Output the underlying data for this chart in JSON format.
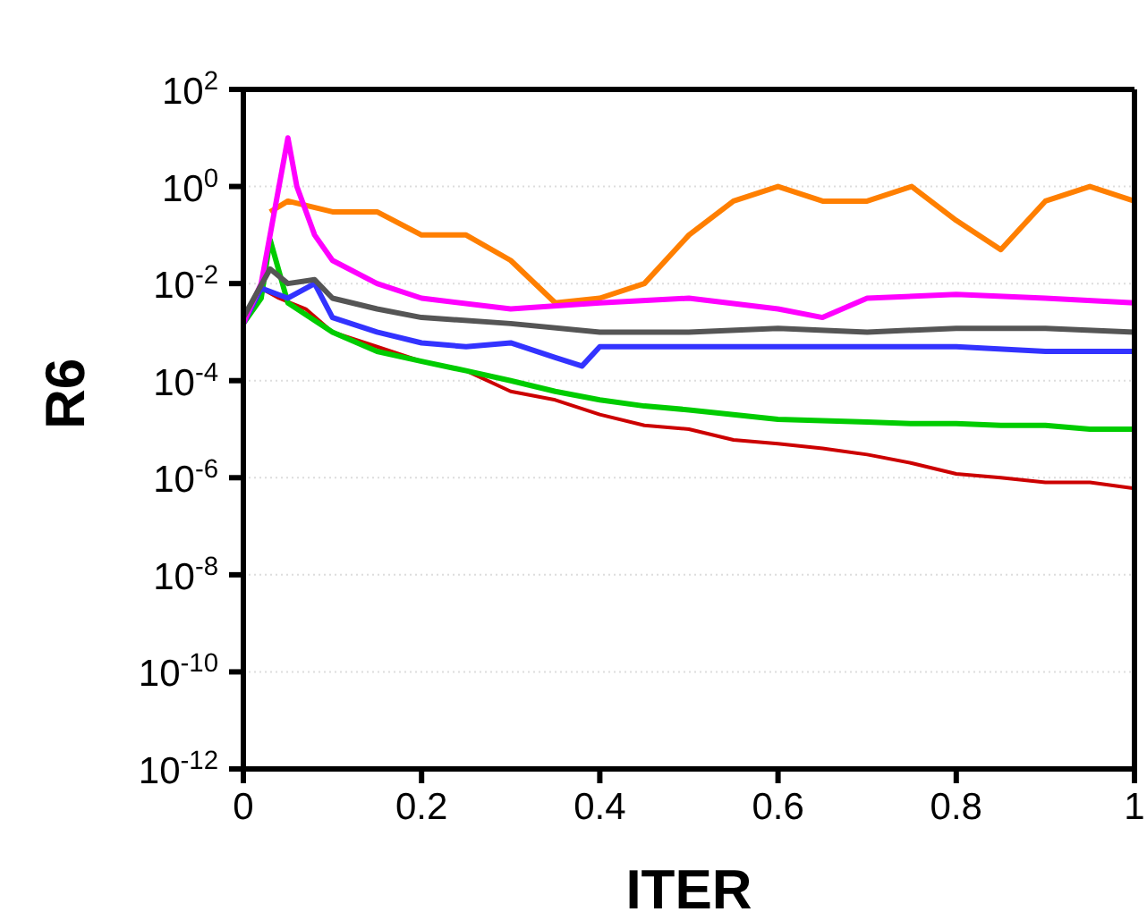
{
  "chart_data": {
    "type": "line",
    "xlabel": "ITER",
    "ylabel": "R6",
    "log": "y",
    "grid": "y",
    "marker": "none",
    "line_style": "solid",
    "xlim": [
      0,
      1
    ],
    "xticks": [
      0,
      0.2,
      0.4,
      0.6,
      0.8,
      1
    ],
    "ylim": [
      1e-12,
      100
    ],
    "yticks": [
      {
        "value": 1e-12,
        "label": "10$^{-12}$"
      },
      {
        "value": 1e-10,
        "label": "10$^{-10}$"
      },
      {
        "value": 1e-08,
        "label": "10$^{-8}$"
      },
      {
        "value": 1e-06,
        "label": "10$^{-6}$"
      },
      {
        "value": 0.0001,
        "label": "10$^{-4}$"
      },
      {
        "value": 0.01,
        "label": "10$^{-2}$"
      },
      {
        "value": 1,
        "label": "10$^{0}$"
      },
      {
        "value": 100,
        "label": "10$^{2}$"
      }
    ],
    "series": [
      {
        "color": "#cc0000",
        "x": [
          0,
          0.02,
          0.04,
          0.07,
          0.1,
          0.15,
          0.2,
          0.25,
          0.3,
          0.35,
          0.4,
          0.45,
          0.5,
          0.55,
          0.6,
          0.65,
          0.7,
          0.75,
          0.8,
          0.85,
          0.9,
          0.95,
          1
        ],
        "values": [
          0.0016,
          0.008,
          0.005,
          0.003,
          0.001,
          0.0005,
          0.00025,
          0.00016,
          6e-05,
          4e-05,
          2e-05,
          1.2e-05,
          1e-05,
          6e-06,
          5e-06,
          4e-06,
          3e-06,
          2e-06,
          1.2e-06,
          1e-06,
          8e-07,
          8e-07,
          6e-07
        ]
      },
      {
        "color": "#00cc00",
        "x": [
          0,
          0.02,
          0.03,
          0.05,
          0.1,
          0.15,
          0.2,
          0.25,
          0.3,
          0.35,
          0.4,
          0.45,
          0.5,
          0.55,
          0.6,
          0.65,
          0.7,
          0.75,
          0.8,
          0.85,
          0.9,
          0.95,
          1
        ],
        "values": [
          0.0015,
          0.005,
          0.08,
          0.004,
          0.001,
          0.0004,
          0.00025,
          0.00016,
          0.0001,
          6e-05,
          4e-05,
          3e-05,
          2.5e-05,
          2e-05,
          1.6e-05,
          1.5e-05,
          1.4e-05,
          1.3e-05,
          1.3e-05,
          1.2e-05,
          1.2e-05,
          1e-05,
          1e-05
        ]
      },
      {
        "color": "#3333ff",
        "x": [
          0,
          0.02,
          0.05,
          0.08,
          0.1,
          0.15,
          0.2,
          0.25,
          0.3,
          0.35,
          0.38,
          0.4,
          0.5,
          0.6,
          0.7,
          0.8,
          0.9,
          1
        ],
        "values": [
          0.0015,
          0.008,
          0.005,
          0.01,
          0.002,
          0.001,
          0.0006,
          0.0005,
          0.0006,
          0.0003,
          0.0002,
          0.0005,
          0.0005,
          0.0005,
          0.0005,
          0.0005,
          0.0004,
          0.0004
        ]
      },
      {
        "color": "#ff7f00",
        "x": [
          0.03,
          0.05,
          0.1,
          0.15,
          0.2,
          0.25,
          0.3,
          0.35,
          0.4,
          0.45,
          0.5,
          0.55,
          0.6,
          0.65,
          0.7,
          0.75,
          0.8,
          0.85,
          0.9,
          0.95,
          1
        ],
        "values": [
          0.3,
          0.5,
          0.3,
          0.3,
          0.1,
          0.1,
          0.03,
          0.004,
          0.005,
          0.01,
          0.1,
          0.5,
          1,
          0.5,
          0.5,
          1,
          0.2,
          0.05,
          0.5,
          1,
          0.5
        ]
      },
      {
        "color": "#ff00ff",
        "x": [
          0,
          0.02,
          0.04,
          0.05,
          0.06,
          0.08,
          0.1,
          0.15,
          0.2,
          0.3,
          0.4,
          0.5,
          0.6,
          0.65,
          0.7,
          0.8,
          0.9,
          1
        ],
        "values": [
          0.0015,
          0.01,
          1,
          10,
          1,
          0.1,
          0.03,
          0.01,
          0.005,
          0.003,
          0.004,
          0.005,
          0.003,
          0.002,
          0.005,
          0.006,
          0.005,
          0.004
        ]
      },
      {
        "color": "#555555",
        "x": [
          0,
          0.03,
          0.05,
          0.08,
          0.1,
          0.15,
          0.2,
          0.3,
          0.4,
          0.5,
          0.6,
          0.7,
          0.8,
          0.9,
          1
        ],
        "values": [
          0.002,
          0.02,
          0.01,
          0.012,
          0.005,
          0.003,
          0.002,
          0.0015,
          0.001,
          0.001,
          0.0012,
          0.001,
          0.0012,
          0.0012,
          0.001
        ]
      }
    ]
  }
}
